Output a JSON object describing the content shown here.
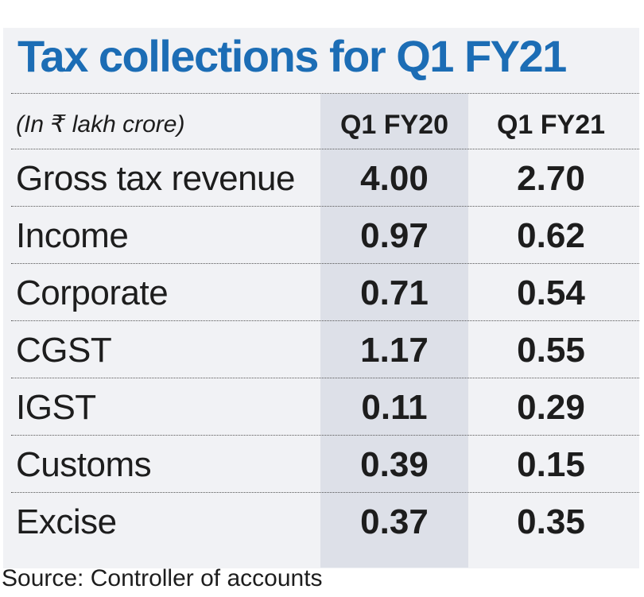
{
  "chart_data": {
    "type": "table",
    "title": "Tax collections for Q1 FY21",
    "unit_label": "(In ₹ lakh crore)",
    "columns": [
      "Q1 FY20",
      "Q1 FY21"
    ],
    "rows": [
      {
        "label": "Gross tax revenue",
        "values": [
          "4.00",
          "2.70"
        ]
      },
      {
        "label": "Income",
        "values": [
          "0.97",
          "0.62"
        ]
      },
      {
        "label": "Corporate",
        "values": [
          "0.71",
          "0.54"
        ]
      },
      {
        "label": "CGST",
        "values": [
          "1.17",
          "0.55"
        ]
      },
      {
        "label": "IGST",
        "values": [
          "0.11",
          "0.29"
        ]
      },
      {
        "label": "Customs",
        "values": [
          "0.39",
          "0.15"
        ]
      },
      {
        "label": "Excise",
        "values": [
          "0.37",
          "0.35"
        ]
      }
    ],
    "source": "Source: Controller of accounts",
    "colors": {
      "title": "#1c6db5",
      "text": "#1d1d1d",
      "background": "#f1f2f5",
      "highlight_column": "#dde0e8"
    }
  }
}
